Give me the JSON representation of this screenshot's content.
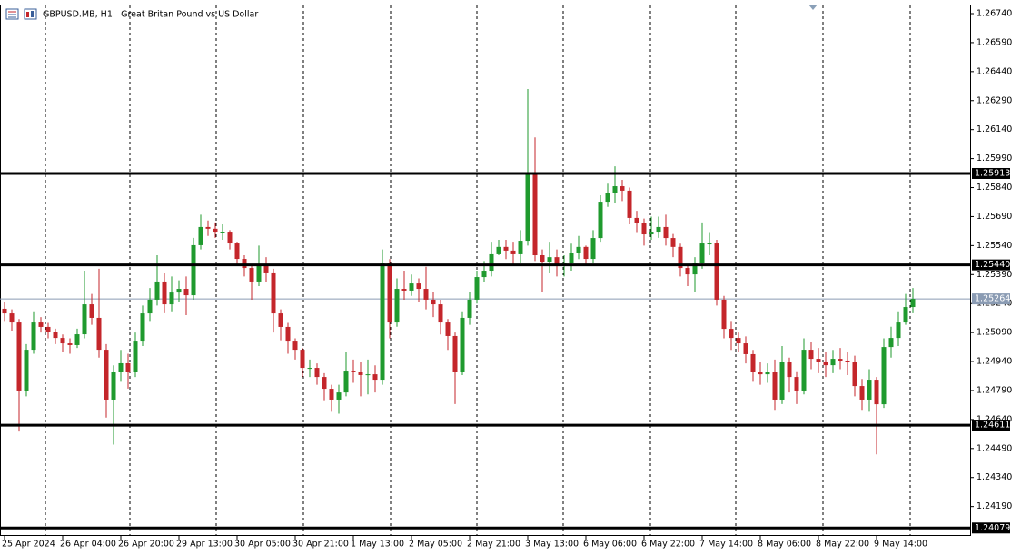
{
  "chart_data": {
    "type": "candlestick",
    "title": "GBPUSD.MB, H1:  Great Britan Pound vs US Dollar",
    "categories": [
      "25 Apr 2024",
      null,
      null,
      null,
      null,
      null,
      null,
      null,
      "26 Apr 04:00",
      null,
      null,
      null,
      null,
      null,
      null,
      null,
      "26 Apr 20:00",
      null,
      null,
      null,
      null,
      null,
      null,
      null,
      "29 Apr 13:00",
      null,
      null,
      null,
      null,
      null,
      null,
      null,
      "30 Apr 05:00",
      null,
      null,
      null,
      null,
      null,
      null,
      null,
      "30 Apr 21:00",
      null,
      null,
      null,
      null,
      null,
      null,
      null,
      "1 May 13:00",
      null,
      null,
      null,
      null,
      null,
      null,
      null,
      "2 May 05:00",
      null,
      null,
      null,
      null,
      null,
      null,
      null,
      "2 May 21:00",
      null,
      null,
      null,
      null,
      null,
      null,
      null,
      "3 May 13:00",
      null,
      null,
      null,
      null,
      null,
      null,
      null,
      "6 May 06:00",
      null,
      null,
      null,
      null,
      null,
      null,
      null,
      "6 May 22:00",
      null,
      null,
      null,
      null,
      null,
      null,
      null,
      "7 May 14:00",
      null,
      null,
      null,
      null,
      null,
      null,
      null,
      "8 May 06:00",
      null,
      null,
      null,
      null,
      null,
      null,
      null,
      "8 May 22:00",
      null,
      null,
      null,
      null,
      null,
      null,
      null,
      "9 May 14:00",
      null,
      null,
      null,
      null,
      null
    ],
    "open": [
      1.25213,
      1.25189,
      1.25142,
      1.2479,
      1.25001,
      1.25142,
      1.25119,
      1.25095,
      1.25062,
      1.25034,
      1.25025,
      1.25081,
      1.25236,
      1.25166,
      1.25001,
      1.24743,
      1.24884,
      1.24931,
      1.24884,
      1.25048,
      1.25189,
      1.2526,
      1.25354,
      1.25236,
      1.25297,
      1.25316,
      1.25283,
      1.25542,
      1.25636,
      1.25627,
      1.25612,
      1.25612,
      1.25551,
      1.25471,
      1.25424,
      1.25354,
      1.25438,
      1.25401,
      1.25189,
      1.25119,
      1.25048,
      1.25001,
      1.24907,
      1.24907,
      1.2486,
      1.24799,
      1.24743,
      1.2478,
      1.24893,
      1.24884,
      1.2487,
      1.24874,
      1.24846,
      1.25448,
      1.25142,
      1.25316,
      1.25307,
      1.25344,
      1.25316,
      1.2526,
      1.25236,
      1.25142,
      1.25072,
      1.24884,
      1.25166,
      1.2526,
      1.25377,
      1.2541,
      1.25495,
      1.25533,
      1.25514,
      1.25495,
      1.25565,
      1.25918,
      1.2549,
      1.25457,
      1.2548,
      1.25438,
      1.25448,
      1.25504,
      1.25533,
      1.25471,
      1.25579,
      1.25767,
      1.2581,
      1.25847,
      1.25824,
      1.25683,
      1.25659,
      1.25598,
      1.25612,
      1.25636,
      1.25579,
      1.25533,
      1.25424,
      1.25391,
      1.25448,
      1.25551,
      1.25551,
      1.2526,
      1.25109,
      1.25062,
      1.25034,
      1.24978,
      1.24884,
      1.24874,
      1.24884,
      1.24743,
      1.2494,
      1.2486,
      1.2479,
      1.25001,
      1.24954,
      1.2494,
      1.24921,
      1.24954,
      1.24945,
      1.2494,
      1.24813,
      1.24743,
      1.24846,
      1.24719,
      1.25015,
      1.25062,
      1.25142,
      1.25222
    ],
    "high": [
      1.2525,
      1.2521,
      1.2516,
      1.2503,
      1.252,
      1.2517,
      1.2514,
      1.2511,
      1.2508,
      1.2506,
      1.2511,
      1.2541,
      1.2529,
      1.2542,
      1.2503,
      1.2492,
      1.25,
      1.2498,
      1.2509,
      1.2523,
      1.2532,
      1.2549,
      1.254,
      1.2538,
      1.2536,
      1.2538,
      1.2558,
      1.257,
      1.2567,
      1.2566,
      1.2565,
      1.2562,
      1.2556,
      1.2549,
      1.2544,
      1.2554,
      1.2548,
      1.2542,
      1.2521,
      1.2514,
      1.2506,
      1.2501,
      1.2495,
      1.2493,
      1.2488,
      1.2482,
      1.2482,
      1.2499,
      1.2495,
      1.2494,
      1.2495,
      1.2492,
      1.2552,
      1.2547,
      1.2537,
      1.2541,
      1.2539,
      1.2537,
      1.2543,
      1.253,
      1.2526,
      1.2516,
      1.2509,
      1.252,
      1.253,
      1.2541,
      1.2546,
      1.2556,
      1.2557,
      1.2557,
      1.2556,
      1.2562,
      1.2635,
      1.261,
      1.2552,
      1.2556,
      1.2552,
      1.2549,
      1.2555,
      1.2559,
      1.2554,
      1.2562,
      1.258,
      1.2586,
      1.2595,
      1.2588,
      1.2584,
      1.2572,
      1.2568,
      1.2569,
      1.2569,
      1.257,
      1.256,
      1.2555,
      1.2544,
      1.2548,
      1.2566,
      1.2561,
      1.2557,
      1.2528,
      1.2515,
      1.2509,
      1.2507,
      1.25,
      1.2494,
      1.2493,
      1.2495,
      1.2502,
      1.2496,
      1.2489,
      1.2506,
      1.2504,
      1.2501,
      1.2499,
      1.25,
      1.2501,
      1.2499,
      1.2497,
      1.2485,
      1.249,
      1.2486,
      1.2506,
      1.2512,
      1.252,
      1.2529,
      1.2532
    ],
    "low": [
      1.2515,
      1.251,
      1.24578,
      1.2476,
      1.2498,
      1.2509,
      1.2506,
      1.2503,
      1.2499,
      1.2498,
      1.2501,
      1.2506,
      1.2513,
      1.2496,
      1.2465,
      1.2451,
      1.2484,
      1.248,
      1.2486,
      1.2502,
      1.2515,
      1.2523,
      1.2519,
      1.252,
      1.2525,
      1.2518,
      1.2526,
      1.2552,
      1.2559,
      1.2558,
      1.2557,
      1.2552,
      1.2544,
      1.2538,
      1.2526,
      1.2533,
      1.2535,
      1.2509,
      1.2505,
      1.2498,
      1.2495,
      1.2486,
      1.2486,
      1.2482,
      1.2474,
      1.2468,
      1.2467,
      1.2476,
      1.2483,
      1.2476,
      1.2477,
      1.2478,
      1.2482,
      1.2506,
      1.2512,
      1.2526,
      1.2528,
      1.2525,
      1.2521,
      1.2517,
      1.2508,
      1.25,
      1.2472,
      1.2487,
      1.2513,
      1.2524,
      1.2535,
      1.2538,
      1.2549,
      1.2547,
      1.2544,
      1.2545,
      1.2554,
      1.2546,
      1.253,
      1.254,
      1.2538,
      1.2538,
      1.2541,
      1.2547,
      1.2544,
      1.2545,
      1.2556,
      1.2574,
      1.2576,
      1.2577,
      1.2565,
      1.2561,
      1.2554,
      1.2557,
      1.2558,
      1.2554,
      1.2548,
      1.2538,
      1.2533,
      1.253,
      1.2542,
      1.2549,
      1.2523,
      1.2506,
      1.25,
      1.2499,
      1.2493,
      1.2484,
      1.2482,
      1.2483,
      1.2469,
      1.2472,
      1.2478,
      1.2472,
      1.2477,
      1.249,
      1.2488,
      1.2486,
      1.2488,
      1.249,
      1.2487,
      1.2476,
      1.2469,
      1.2468,
      1.2446,
      1.247,
      1.2496,
      1.2502,
      1.2513,
      1.2519
    ],
    "close": [
      1.25189,
      1.25142,
      1.2479,
      1.25001,
      1.25142,
      1.25119,
      1.25095,
      1.25062,
      1.25034,
      1.25025,
      1.25081,
      1.25236,
      1.25166,
      1.25001,
      1.24743,
      1.24884,
      1.24931,
      1.24884,
      1.25048,
      1.25189,
      1.2526,
      1.25354,
      1.25236,
      1.25297,
      1.25316,
      1.25283,
      1.25542,
      1.25636,
      1.25627,
      1.25612,
      1.25612,
      1.25551,
      1.25471,
      1.25424,
      1.25354,
      1.25438,
      1.25401,
      1.25189,
      1.25119,
      1.25048,
      1.25001,
      1.24907,
      1.24907,
      1.2486,
      1.24799,
      1.24743,
      1.2478,
      1.24893,
      1.24884,
      1.2487,
      1.24874,
      1.24846,
      1.25448,
      1.25142,
      1.25316,
      1.25307,
      1.25344,
      1.25316,
      1.2526,
      1.25236,
      1.25142,
      1.25072,
      1.24884,
      1.25166,
      1.2526,
      1.25377,
      1.2541,
      1.25495,
      1.25533,
      1.25514,
      1.25495,
      1.25565,
      1.25918,
      1.2549,
      1.25457,
      1.2548,
      1.25438,
      1.25448,
      1.25504,
      1.25533,
      1.25471,
      1.25579,
      1.25767,
      1.2581,
      1.25847,
      1.25824,
      1.25683,
      1.25659,
      1.25598,
      1.25612,
      1.25636,
      1.25579,
      1.25533,
      1.25424,
      1.25391,
      1.25448,
      1.25551,
      1.25551,
      1.2526,
      1.25109,
      1.25062,
      1.25034,
      1.24978,
      1.24884,
      1.24874,
      1.24884,
      1.24743,
      1.2494,
      1.2486,
      1.2479,
      1.25001,
      1.24954,
      1.2494,
      1.24921,
      1.24954,
      1.24945,
      1.2494,
      1.24813,
      1.24743,
      1.24846,
      1.24719,
      1.25015,
      1.25062,
      1.25142,
      1.25222,
      1.25264
    ],
    "up_color": "#1f9a2e",
    "down_color": "#c4262b",
    "ylim": [
      1.24038,
      1.26787
    ],
    "yticks": [
      {
        "value": 1.2674,
        "label": "1.26740"
      },
      {
        "value": 1.2659,
        "label": "1.26590"
      },
      {
        "value": 1.2644,
        "label": "1.26440"
      },
      {
        "value": 1.2629,
        "label": "1.26290"
      },
      {
        "value": 1.2614,
        "label": "1.26140"
      },
      {
        "value": 1.2599,
        "label": "1.25990"
      },
      {
        "value": 1.2584,
        "label": "1.25840"
      },
      {
        "value": 1.2569,
        "label": "1.25690"
      },
      {
        "value": 1.2554,
        "label": "1.25540"
      },
      {
        "value": 1.2539,
        "label": "1.25390"
      },
      {
        "value": 1.2524,
        "label": "1.25240"
      },
      {
        "value": 1.2509,
        "label": "1.25090"
      },
      {
        "value": 1.2494,
        "label": "1.24940"
      },
      {
        "value": 1.2479,
        "label": "1.24790"
      },
      {
        "value": 1.2464,
        "label": "1.24640"
      },
      {
        "value": 1.2449,
        "label": "1.24490"
      },
      {
        "value": 1.2434,
        "label": "1.24340"
      },
      {
        "value": 1.2419,
        "label": "1.24190"
      }
    ],
    "levels": [
      1.25913,
      {
        "value": 1.2544,
        "label": "1.25440"
      },
      1.24611,
      1.24079
    ],
    "last_price": 1.25264,
    "last_price_color": "#8a9bb3"
  }
}
